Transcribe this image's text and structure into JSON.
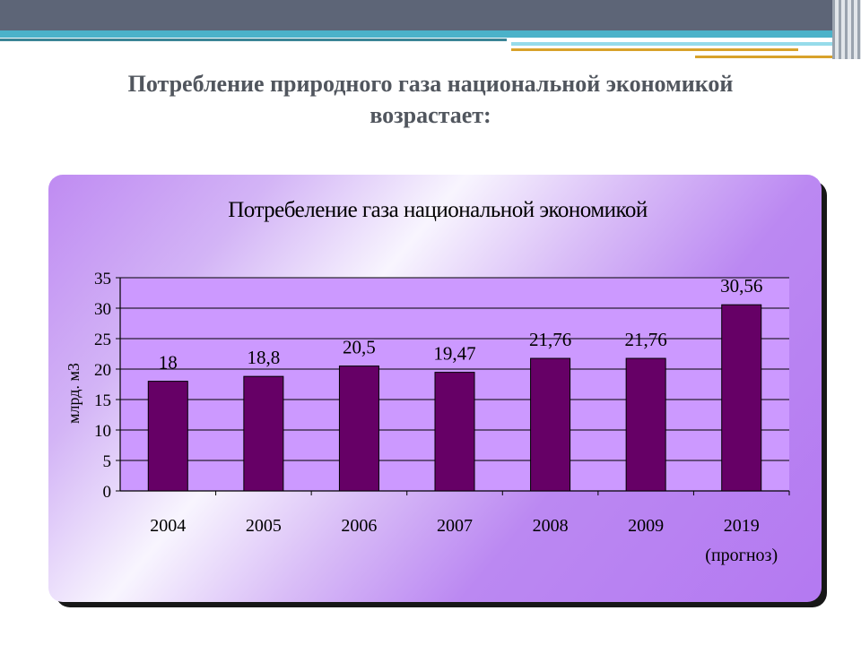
{
  "slide": {
    "title_line1": "Потребление природного газа национальной экономикой",
    "title_line2": "возрастает:"
  },
  "chart_data": {
    "type": "bar",
    "title": "Потребеление газа национальной экономикой",
    "ylabel": "млрд. м3",
    "xlabel": "",
    "categories": [
      "2004",
      "2005",
      "2006",
      "2007",
      "2008",
      "2009",
      "2019"
    ],
    "category_notes": [
      "",
      "",
      "",
      "",
      "",
      "",
      "(прогноз)"
    ],
    "values": [
      18,
      18.8,
      20.5,
      19.47,
      21.76,
      21.76,
      30.56
    ],
    "value_labels": [
      "18",
      "18,8",
      "20,5",
      "19,47",
      "21,76",
      "21,76",
      "30,56"
    ],
    "ylim": [
      0,
      35
    ],
    "yticks": [
      0,
      5,
      10,
      15,
      20,
      25,
      30,
      35
    ],
    "grid": true,
    "colors": {
      "bar": "#660066",
      "plot_bg": "#cc99ff"
    }
  }
}
